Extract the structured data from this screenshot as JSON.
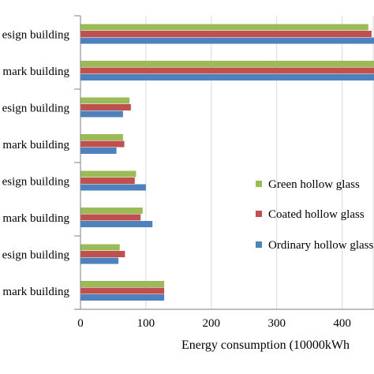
{
  "chart_data": {
    "type": "bar",
    "orientation": "horizontal",
    "categories": [
      "esign building",
      "mark building",
      "esign building",
      "mark building",
      "esign building",
      "mark building",
      "esign building",
      "mark building"
    ],
    "series": [
      {
        "name": "Green hollow glass",
        "color": "#9bbb59",
        "values": [
          440,
          460,
          75,
          65,
          85,
          95,
          60,
          128
        ]
      },
      {
        "name": "Coated  hollow glass",
        "color": "#c0504d",
        "values": [
          445,
          462,
          77,
          67,
          83,
          92,
          68,
          128
        ]
      },
      {
        "name": "Ordinary hollow glass",
        "color": "#4f81bd",
        "values": [
          450,
          465,
          65,
          55,
          100,
          110,
          58,
          128
        ]
      }
    ],
    "xaxis": {
      "label": "Energy consumption (10000kWh",
      "ticks": [
        0,
        100,
        200,
        300,
        400
      ],
      "range": [
        0,
        450
      ]
    },
    "grid": true,
    "legend_position": "right"
  }
}
